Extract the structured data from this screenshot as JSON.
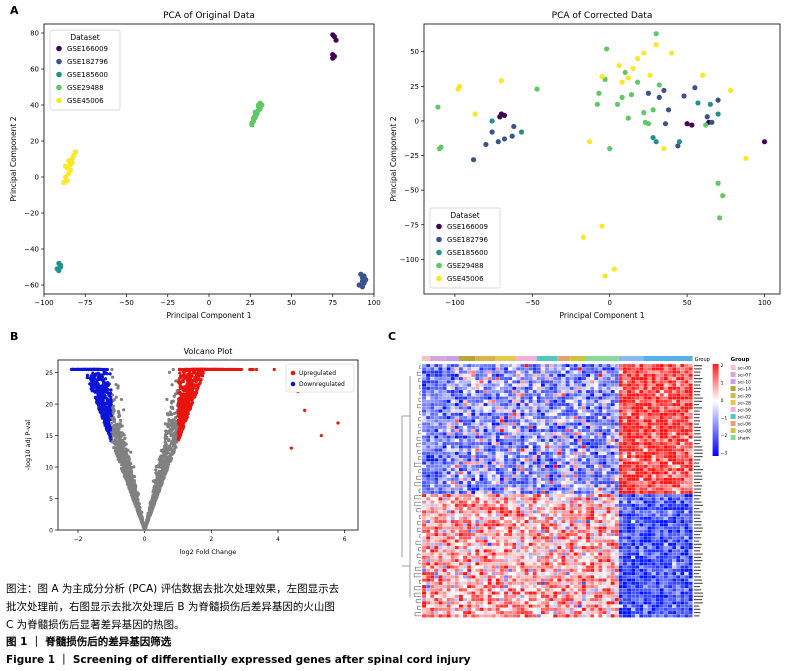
{
  "panels": {
    "a": "A",
    "b": "B",
    "c": "C"
  },
  "chart_data": [
    {
      "type": "scatter",
      "title": "PCA of Original Data",
      "xlabel": "Principal Component 1",
      "ylabel": "Principal Component 2",
      "xlim": [
        -100,
        100
      ],
      "ylim": [
        -65,
        85
      ],
      "xticks": [
        -100,
        -75,
        -50,
        -25,
        0,
        25,
        50,
        75,
        100
      ],
      "yticks": [
        -60,
        -40,
        -20,
        0,
        20,
        40,
        60,
        80
      ],
      "grid": false,
      "legend_title": "Dataset",
      "legend_position": "top-left",
      "series": [
        {
          "name": "GSE166009",
          "color": "#440154",
          "points": [
            [
              75,
              79
            ],
            [
              76,
              78
            ],
            [
              77,
              76
            ],
            [
              75,
              68
            ],
            [
              76,
              67
            ],
            [
              75,
              66
            ]
          ]
        },
        {
          "name": "GSE182796",
          "color": "#3b528b",
          "points": [
            [
              92,
              -54
            ],
            [
              93,
              -56
            ],
            [
              94,
              -55
            ],
            [
              93,
              -58
            ],
            [
              94,
              -59
            ],
            [
              91,
              -60
            ],
            [
              93,
              -61
            ],
            [
              95,
              -57
            ]
          ]
        },
        {
          "name": "GSE185600",
          "color": "#21918c",
          "points": [
            [
              -91,
              -48
            ],
            [
              -90,
              -49
            ],
            [
              -92,
              -51
            ],
            [
              -91,
              -52
            ],
            [
              -90,
              -50
            ]
          ]
        },
        {
          "name": "GSE29488",
          "color": "#5ec962",
          "points": [
            [
              26,
              29
            ],
            [
              27,
              31
            ],
            [
              28,
              33
            ],
            [
              29,
              35
            ],
            [
              27,
              32
            ],
            [
              30,
              37
            ],
            [
              31,
              38
            ],
            [
              30,
              40
            ],
            [
              31,
              41
            ],
            [
              28,
              34
            ],
            [
              29,
              36
            ],
            [
              26,
              30
            ],
            [
              27,
              33
            ],
            [
              30,
              39
            ],
            [
              32,
              40
            ],
            [
              28,
              36
            ]
          ]
        },
        {
          "name": "GSE45006",
          "color": "#fde725",
          "points": [
            [
              -88,
              -3
            ],
            [
              -86,
              -2
            ],
            [
              -87,
              0
            ],
            [
              -85,
              2
            ],
            [
              -86,
              5
            ],
            [
              -84,
              7
            ],
            [
              -85,
              9
            ],
            [
              -83,
              10
            ],
            [
              -82,
              12
            ],
            [
              -81,
              14
            ],
            [
              -84,
              4
            ],
            [
              -87,
              6
            ],
            [
              -83,
              8
            ]
          ]
        }
      ]
    },
    {
      "type": "scatter",
      "title": "PCA of Corrected Data",
      "xlabel": "Principal Component 1",
      "ylabel": "Principal Component 2",
      "xlim": [
        -120,
        110
      ],
      "ylim": [
        -125,
        70
      ],
      "xticks": [
        -100,
        -50,
        0,
        50,
        100
      ],
      "yticks": [
        -100,
        -75,
        -50,
        -25,
        0,
        25,
        50
      ],
      "grid": false,
      "legend_title": "Dataset",
      "legend_position": "bottom-left",
      "series": [
        {
          "name": "GSE166009",
          "color": "#440154",
          "points": [
            [
              -70,
              5
            ],
            [
              -68,
              4
            ],
            [
              -71,
              3
            ],
            [
              50,
              -2
            ],
            [
              53,
              -3
            ],
            [
              100,
              -15
            ],
            [
              64,
              -1
            ]
          ]
        },
        {
          "name": "GSE182796",
          "color": "#3b528b",
          "points": [
            [
              -88,
              -28
            ],
            [
              -80,
              -17
            ],
            [
              -76,
              -8
            ],
            [
              -72,
              -15
            ],
            [
              -68,
              -13
            ],
            [
              -63,
              -11
            ],
            [
              -62,
              -4
            ],
            [
              25,
              20
            ],
            [
              32,
              17
            ],
            [
              36,
              -2
            ],
            [
              38,
              8
            ],
            [
              44,
              -18
            ],
            [
              48,
              18
            ],
            [
              55,
              24
            ],
            [
              63,
              3
            ],
            [
              66,
              -1
            ],
            [
              35,
              22
            ],
            [
              70,
              15
            ]
          ]
        },
        {
          "name": "GSE185600",
          "color": "#21918c",
          "points": [
            [
              -57,
              -8
            ],
            [
              -76,
              0
            ],
            [
              30,
              -15
            ],
            [
              28,
              -12
            ],
            [
              45,
              -15
            ],
            [
              70,
              5
            ],
            [
              57,
              13
            ],
            [
              65,
              12
            ]
          ]
        },
        {
          "name": "GSE29488",
          "color": "#5ec962",
          "points": [
            [
              -110,
              -20
            ],
            [
              -109,
              -19
            ],
            [
              -111,
              10
            ],
            [
              -47,
              23
            ],
            [
              -8,
              12
            ],
            [
              -7,
              20
            ],
            [
              -3,
              30
            ],
            [
              -2,
              52
            ],
            [
              0,
              -20
            ],
            [
              5,
              12
            ],
            [
              8,
              17
            ],
            [
              10,
              35
            ],
            [
              12,
              2
            ],
            [
              14,
              19
            ],
            [
              18,
              28
            ],
            [
              22,
              6
            ],
            [
              23,
              -1
            ],
            [
              25,
              -2
            ],
            [
              28,
              8
            ],
            [
              30,
              63
            ],
            [
              32,
              26
            ],
            [
              70,
              -45
            ],
            [
              71,
              -70
            ],
            [
              73,
              -54
            ],
            [
              62,
              -3
            ]
          ]
        },
        {
          "name": "GSE45006",
          "color": "#fde725",
          "points": [
            [
              -98,
              23
            ],
            [
              -97,
              25
            ],
            [
              -87,
              5
            ],
            [
              -70,
              29
            ],
            [
              -17,
              -84
            ],
            [
              -5,
              -76
            ],
            [
              -3,
              -112
            ],
            [
              3,
              -107
            ],
            [
              -13,
              -15
            ],
            [
              -5,
              32
            ],
            [
              6,
              40
            ],
            [
              8,
              28
            ],
            [
              12,
              31
            ],
            [
              15,
              38
            ],
            [
              18,
              45
            ],
            [
              22,
              49
            ],
            [
              26,
              33
            ],
            [
              30,
              55
            ],
            [
              35,
              -20
            ],
            [
              40,
              49
            ],
            [
              60,
              33
            ],
            [
              78,
              22
            ],
            [
              88,
              -27
            ]
          ]
        }
      ]
    },
    {
      "type": "scatter",
      "title": "Volcano Plot",
      "xlabel": "log2 Fold Change",
      "ylabel": "-log10 adj P-val",
      "xlim": [
        -2.6,
        6.4
      ],
      "ylim": [
        0,
        27
      ],
      "xticks": [
        -2,
        0,
        2,
        4,
        6
      ],
      "yticks": [
        0,
        5,
        10,
        15,
        20,
        25
      ],
      "grid": false,
      "legend_position": "top-right",
      "series": [
        {
          "name": "Upregulated",
          "color": "#e8140e"
        },
        {
          "name": "Downregulated",
          "color": "#0b14d8"
        },
        {
          "name": "",
          "color": "#808080"
        }
      ]
    },
    {
      "type": "heatmap",
      "legend_title": "Group",
      "groups": [
        "sci-00",
        "sci-07",
        "sci-10",
        "sci-14",
        "sci-20",
        "sci-28",
        "sci-56",
        "sci-02",
        "sci-06",
        "sci-08",
        "sham"
      ],
      "group_colors": [
        "#f8766d",
        "#e58700",
        "#c99800",
        "#a3a500",
        "#6bb100",
        "#00ba38",
        "#00bf7d",
        "#00c0af",
        "#00bcd8",
        "#00b0f6",
        "#619cff"
      ],
      "scale_ticks": [
        "2",
        "1",
        "0",
        "-1",
        "-2",
        "-3"
      ],
      "column_header": "Group"
    }
  ],
  "caption": {
    "line1": "图注：图 A 为主成分分析 (PCA) 评估数据去批次处理效果，左图显示去",
    "line2": "批次处理前，右图显示去批次处理后  B 为脊髓损伤后差异基因的火山图",
    "line3": "C 为脊髓损伤后显著差异基因的热图。",
    "title_cn": "图 1 ｜ 脊髓损伤后的差异基因筛选",
    "title_en": "Figure 1 ｜ Screening of differentially expressed genes after spinal cord injury"
  }
}
